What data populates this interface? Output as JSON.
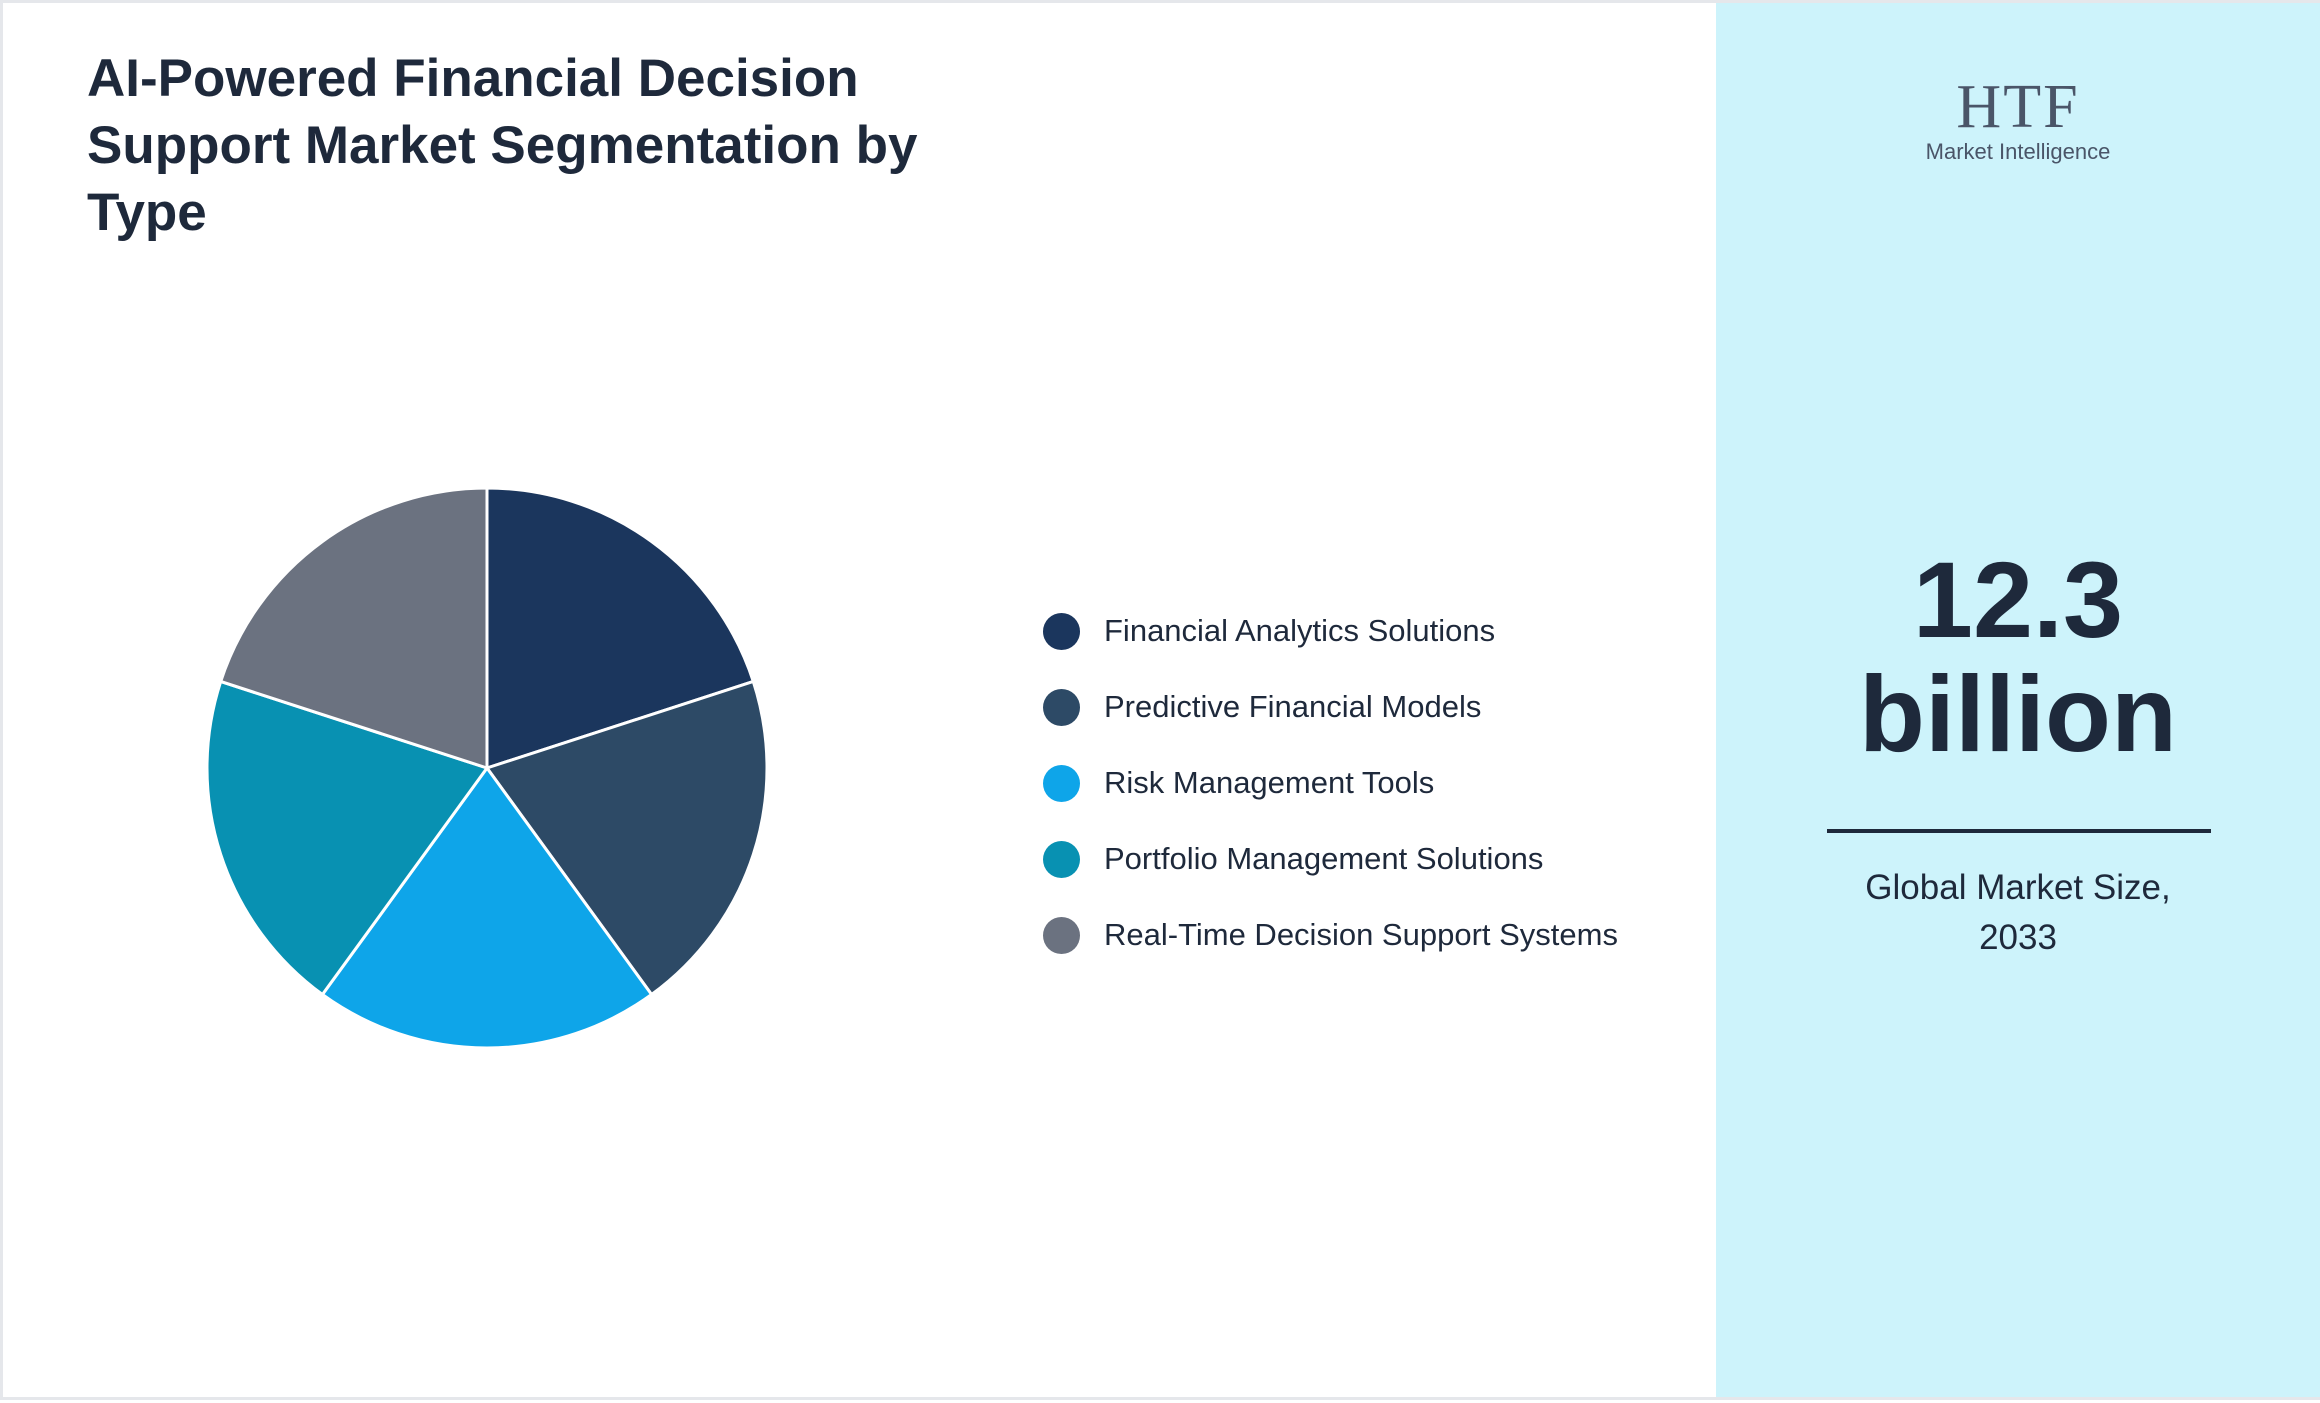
{
  "chart_data": {
    "type": "pie",
    "title": "AI-Powered Financial Decision Support Market Segmentation by Type",
    "categories": [
      "Financial Analytics Solutions",
      "Predictive Financial Models",
      "Risk Management Tools",
      "Portfolio Management Solutions",
      "Real-Time Decision Support Systems"
    ],
    "values": [
      20,
      20,
      20,
      20,
      20
    ],
    "colors": [
      "#1b365d",
      "#2d4a66",
      "#0ea5e9",
      "#0891b2",
      "#6b7280"
    ]
  },
  "market_size": {
    "value": "12.3 billion",
    "caption": "Global Market Size, 2033"
  },
  "logo": {
    "mark": "HTF",
    "text": "Market Intelligence"
  }
}
